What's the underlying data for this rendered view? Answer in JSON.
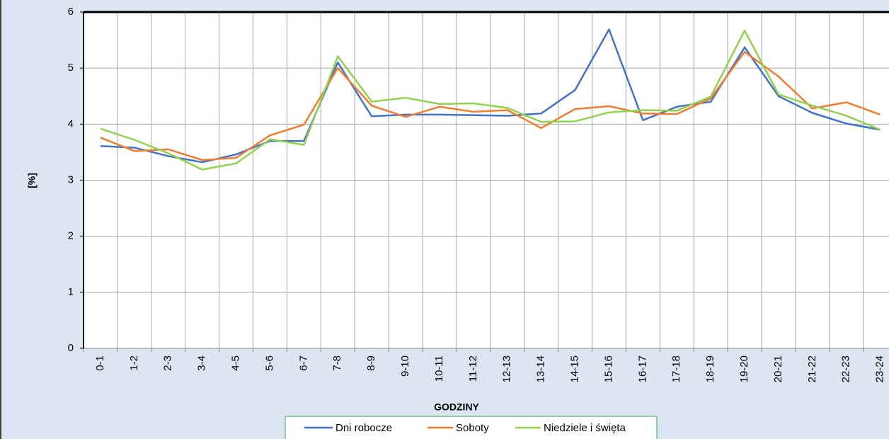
{
  "chart_data": {
    "type": "line",
    "x_label": "GODZINY",
    "y_label": "[%]",
    "categories": [
      "0-1",
      "1-2",
      "2-3",
      "3-4",
      "4-5",
      "5-6",
      "6-7",
      "7-8",
      "8-9",
      "9-10",
      "10-11",
      "11-12",
      "12-13",
      "13-14",
      "14-15",
      "15-16",
      "16-17",
      "17-18",
      "18-19",
      "19-20",
      "20-21",
      "21-22",
      "22-23",
      "23-24"
    ],
    "series": [
      {
        "name": "Dni robocze",
        "color": "#4472c4",
        "values": [
          3.61,
          3.58,
          3.43,
          3.32,
          3.46,
          3.7,
          3.7,
          5.1,
          4.14,
          4.17,
          4.17,
          4.16,
          4.15,
          4.19,
          4.61,
          5.69,
          4.07,
          4.31,
          4.4,
          5.37,
          4.5,
          4.2,
          4.01,
          3.9
        ]
      },
      {
        "name": "Soboty",
        "color": "#ed7d31",
        "values": [
          3.76,
          3.52,
          3.55,
          3.36,
          3.4,
          3.8,
          3.99,
          5.0,
          4.33,
          4.13,
          4.31,
          4.22,
          4.25,
          3.93,
          4.27,
          4.32,
          4.19,
          4.18,
          4.46,
          5.29,
          4.85,
          4.28,
          4.39,
          4.17
        ]
      },
      {
        "name": "Niedziele i święta",
        "color": "#92d050",
        "values": [
          3.92,
          3.72,
          3.48,
          3.19,
          3.3,
          3.73,
          3.63,
          5.21,
          4.4,
          4.47,
          4.36,
          4.37,
          4.29,
          4.04,
          4.05,
          4.21,
          4.25,
          4.24,
          4.49,
          5.67,
          4.53,
          4.33,
          4.15,
          3.9
        ]
      }
    ],
    "ylim": [
      0,
      6
    ],
    "yticks": [
      0,
      1,
      2,
      3,
      4,
      5,
      6
    ],
    "grid": true,
    "legend": "bottom"
  }
}
